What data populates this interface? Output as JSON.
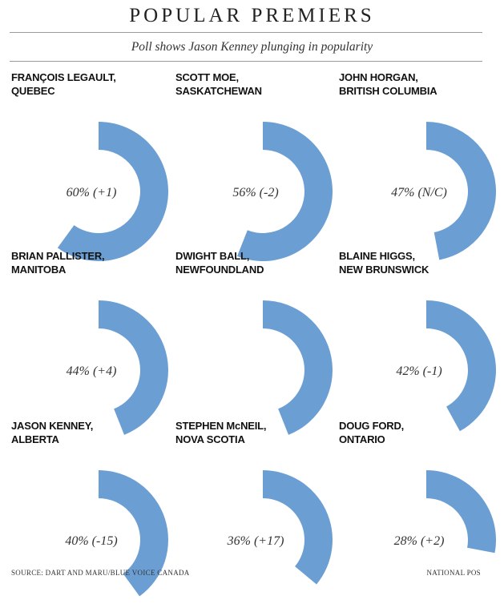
{
  "header": {
    "title": "POPULAR PREMIERS",
    "subtitle": "Poll shows Jason Kenney plunging in popularity"
  },
  "footer": {
    "source": "SOURCE: DART AND MARU/BLUE VOICE CANADA",
    "credit": "NATIONAL POS"
  },
  "colors": {
    "arc": "#6b9fd4",
    "rule": "#9a9a9a",
    "text": "#222222"
  },
  "chart_data": {
    "type": "pie",
    "title": "POPULAR PREMIERS",
    "subtitle": "Poll shows Jason Kenney plunging in popularity",
    "unit": "%",
    "series": [
      {
        "name": "FRANÇOIS LEGAULT,",
        "province": "QUEBEC",
        "value": 60,
        "label": "60% (+1)"
      },
      {
        "name": "SCOTT MOE,",
        "province": "SASKATCHEWAN",
        "value": 56,
        "label": "56% (-2)"
      },
      {
        "name": "JOHN HORGAN,",
        "province": "BRITISH COLUMBIA",
        "value": 47,
        "label": "47% (N/C)"
      },
      {
        "name": "BRIAN PALLISTER,",
        "province": "MANITOBA",
        "value": 44,
        "label": "44% (+4)"
      },
      {
        "name": "DWIGHT BALL,",
        "province": "NEWFOUNDLAND",
        "value": 44,
        "label": ""
      },
      {
        "name": "BLAINE HIGGS,",
        "province": "NEW BRUNSWICK",
        "value": 42,
        "label": "42% (-1)"
      },
      {
        "name": "JASON KENNEY,",
        "province": "ALBERTA",
        "value": 40,
        "label": "40% (-15)"
      },
      {
        "name": "STEPHEN McNEIL,",
        "province": "NOVA SCOTIA",
        "value": 36,
        "label": "36% (+17)"
      },
      {
        "name": "DOUG FORD,",
        "province": "ONTARIO",
        "value": 28,
        "label": "28% (+2)"
      }
    ]
  }
}
